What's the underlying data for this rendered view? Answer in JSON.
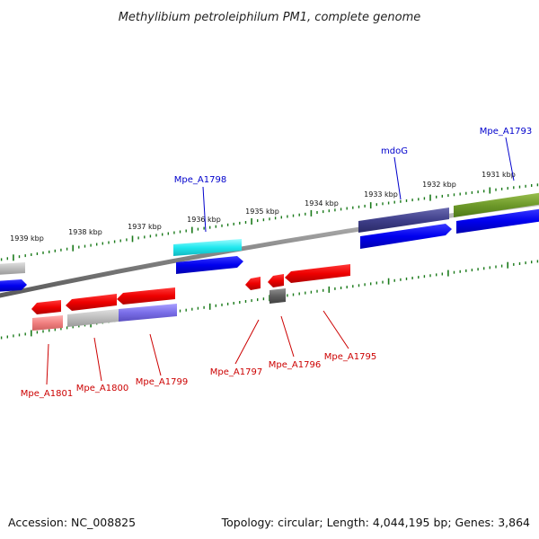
{
  "title": "Methylibium petroleiphilum PM1, complete genome",
  "footer": {
    "accession": "Accession: NC_008825",
    "summary": "Topology: circular; Length: 4,044,195 bp; Genes: 3,864"
  },
  "scale_labels": [
    "1939 kbp",
    "1938 kbp",
    "1937 kbp",
    "1936 kbp",
    "1935 kbp",
    "1934 kbp",
    "1933 kbp",
    "1932 kbp",
    "1931 kbp"
  ],
  "gene_labels_forward": [
    "Mpe_A1798",
    "mdoG",
    "Mpe_A1793"
  ],
  "gene_labels_reverse": [
    "Mpe_A1801",
    "Mpe_A1800",
    "Mpe_A1799",
    "Mpe_A1797",
    "Mpe_A1796",
    "Mpe_A1795"
  ],
  "colors": {
    "forward_label": "#0000cc",
    "reverse_label": "#cc0000",
    "tick": "#1a7a1a",
    "backbone": "#808080"
  }
}
